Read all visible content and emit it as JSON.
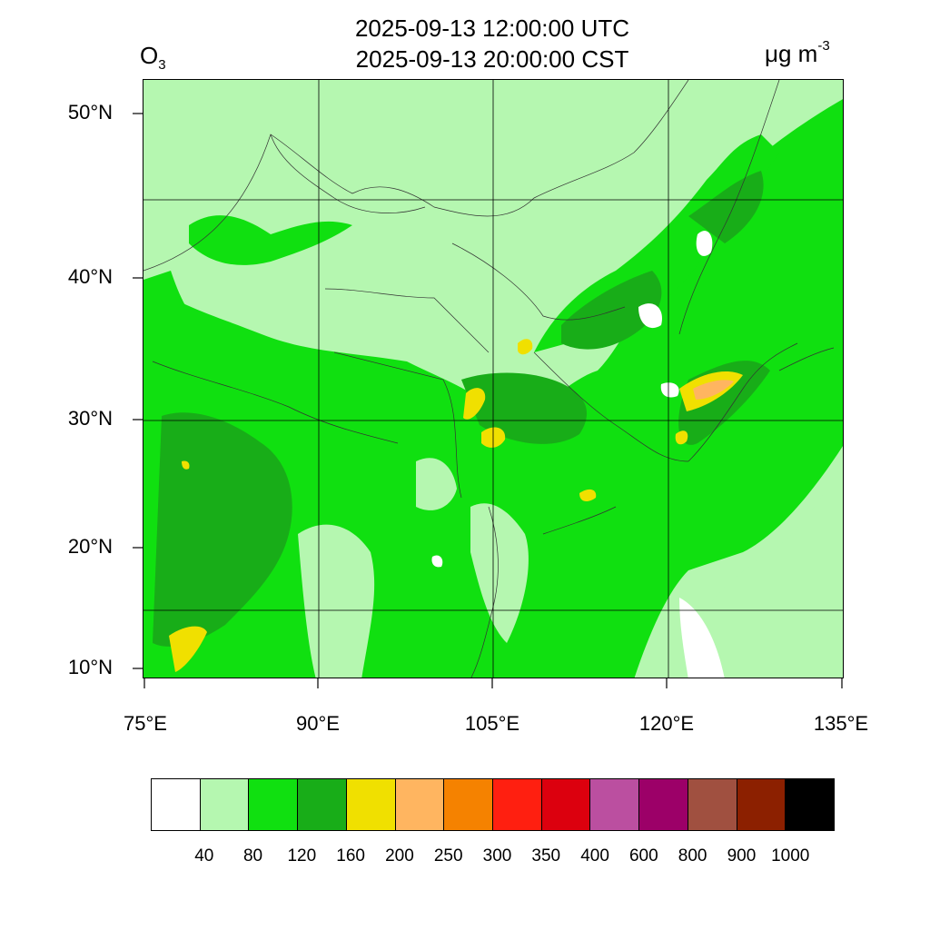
{
  "title": {
    "utc": "2025-09-13 12:00:00 UTC",
    "cst": "2025-09-13 20:00:00 CST"
  },
  "species": {
    "base": "O",
    "subscript": "3"
  },
  "units": {
    "base": "μg m",
    "superscript": "-3"
  },
  "map": {
    "lat_labels": [
      "50°N",
      "40°N",
      "30°N",
      "20°N",
      "10°N"
    ],
    "lon_labels": [
      "75°E",
      "90°E",
      "105°E",
      "120°E",
      "135°E"
    ],
    "land_color": "#b5f7b0"
  },
  "colorbar": {
    "colors": [
      "#ffffff",
      "#b5f7b0",
      "#10e010",
      "#18ad18",
      "#f0e000",
      "#ffb560",
      "#f58200",
      "#ff1f10",
      "#dc000e",
      "#bb4fa0",
      "#9c0068",
      "#a05040",
      "#8c2000",
      "#000000"
    ],
    "labels": [
      "40",
      "80",
      "120",
      "160",
      "200",
      "250",
      "300",
      "350",
      "400",
      "600",
      "800",
      "900",
      "1000"
    ]
  }
}
